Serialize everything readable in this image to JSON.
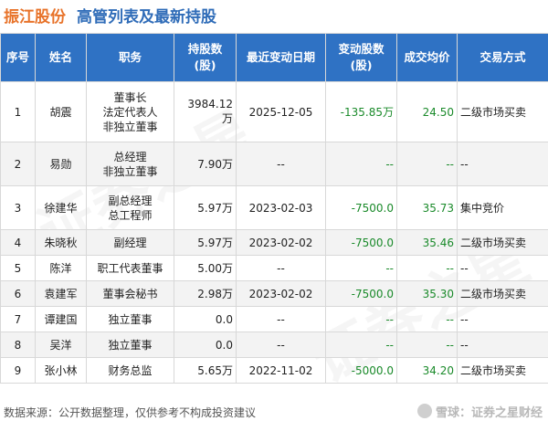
{
  "header": {
    "company": "振江股份",
    "subtitle": "高管列表及最新持股"
  },
  "table": {
    "columns": [
      "序号",
      "姓名",
      "职务",
      "持股数\n(股)",
      "最近变动日期",
      "变动股数\n(股)",
      "成交均价",
      "交易方式"
    ],
    "rows": [
      {
        "idx": "1",
        "name": "胡震",
        "position": "董事长\n法定代表人\n非独立董事",
        "shares": "3984.12万",
        "date": "2025-12-05",
        "change": "-135.85万",
        "price": "24.50",
        "method": "二级市场买卖"
      },
      {
        "idx": "2",
        "name": "易勋",
        "position": "总经理\n非独立董事",
        "shares": "7.90万",
        "date": "--",
        "change": "--",
        "price": "--",
        "method": "--"
      },
      {
        "idx": "3",
        "name": "徐建华",
        "position": "副总经理\n总工程师",
        "shares": "5.97万",
        "date": "2023-02-03",
        "change": "-7500.0",
        "price": "35.73",
        "method": "集中竞价"
      },
      {
        "idx": "4",
        "name": "朱晓秋",
        "position": "副经理",
        "shares": "5.97万",
        "date": "2023-02-02",
        "change": "-7500.0",
        "price": "35.46",
        "method": "二级市场买卖"
      },
      {
        "idx": "5",
        "name": "陈洋",
        "position": "职工代表董事",
        "shares": "5.00万",
        "date": "--",
        "change": "--",
        "price": "--",
        "method": "--"
      },
      {
        "idx": "6",
        "name": "袁建军",
        "position": "董事会秘书",
        "shares": "2.98万",
        "date": "2023-02-02",
        "change": "-7500.0",
        "price": "35.30",
        "method": "二级市场买卖"
      },
      {
        "idx": "7",
        "name": "谭建国",
        "position": "独立董事",
        "shares": "0.0",
        "date": "--",
        "change": "--",
        "price": "--",
        "method": "--"
      },
      {
        "idx": "8",
        "name": "吴洋",
        "position": "独立董事",
        "shares": "0.0",
        "date": "--",
        "change": "--",
        "price": "--",
        "method": "--"
      },
      {
        "idx": "9",
        "name": "张小林",
        "position": "财务总监",
        "shares": "5.65万",
        "date": "2022-11-02",
        "change": "-5000.0",
        "price": "34.20",
        "method": "二级市场买卖"
      }
    ]
  },
  "footer": {
    "source": "数据来源：公开数据整理，仅供参考不构成投资建议"
  },
  "brand": {
    "label": "雪球：证券之星财经"
  },
  "watermark": {
    "text": "证券之星"
  },
  "colors": {
    "header_bg": "#2f72c4",
    "company": "#e8732a",
    "subtitle": "#2f6cb8",
    "value_green": "#1a8a2a"
  }
}
